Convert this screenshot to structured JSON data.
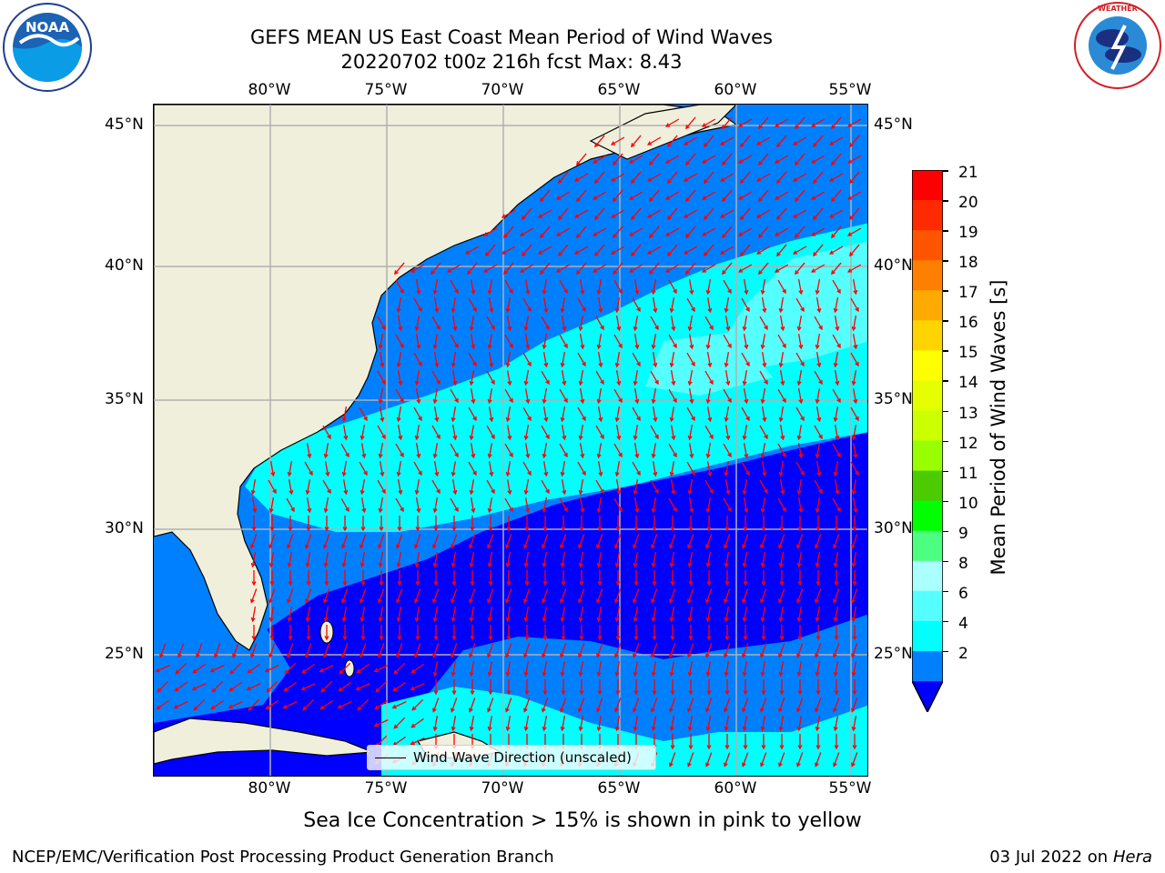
{
  "title_line1": "GEFS MEAN US East Coast Mean Period of Wind Waves",
  "title_line2": "20220702 t00z 216h fcst   Max: 8.43",
  "lon_labels": [
    "80°W",
    "75°W",
    "70°W",
    "65°W",
    "60°W",
    "55°W"
  ],
  "lat_labels": [
    "45°N",
    "40°N",
    "35°N",
    "30°N",
    "25°N"
  ],
  "legend_text": "Wind Wave Direction (unscaled)",
  "colorbar": {
    "label": "Mean Period of Wind Waves [s]",
    "ticks": [
      "21",
      "20",
      "19",
      "18",
      "17",
      "16",
      "15",
      "14",
      "13",
      "12",
      "11",
      "10",
      "9",
      "8",
      "6",
      "4",
      "2"
    ],
    "colors": [
      "#ff0000",
      "#ff2a00",
      "#ff5500",
      "#ff7f00",
      "#ffaa00",
      "#ffd400",
      "#ffff00",
      "#e5ff00",
      "#ccff00",
      "#99ff00",
      "#4ccc00",
      "#00ff00",
      "#4dff80",
      "#aaffff",
      "#55ffff",
      "#00ffff",
      "#0080ff"
    ],
    "extend_color": "#0000ff"
  },
  "map_colors": {
    "land": "#efefdc",
    "ocean_2_4": "#0080ff",
    "ocean_4_6": "#00ffff",
    "ocean_6_8": "#55ffff",
    "ocean_lt2": "#0000ff",
    "arrow": "#ff0000",
    "grid": "#b0b0b0"
  },
  "subtitle": "Sea Ice Concentration > 15% is shown in pink to yellow",
  "footer_left": "NCEP/EMC/Verification Post Processing Product Generation Branch",
  "footer_right_date": "03 Jul 2022 on ",
  "footer_right_machine": "Hera",
  "logos": {
    "left": "NOAA",
    "right": "NATIONAL WEATHER SERVICE"
  }
}
